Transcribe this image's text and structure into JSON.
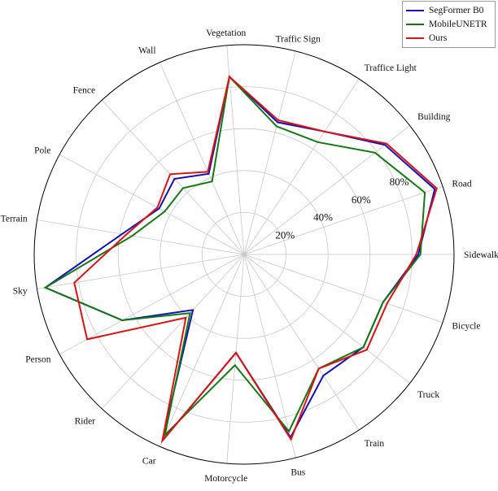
{
  "chart_data": {
    "type": "radar",
    "categories": [
      "Sidewalk",
      "Road",
      "Building",
      "Traffice Light",
      "Traffic Sign",
      "Vegetation",
      "Wall",
      "Fence",
      "Pole",
      "Terrain",
      "Sky",
      "Person",
      "Rider",
      "Car",
      "Motorcycle",
      "Bus",
      "Train",
      "Truck",
      "Bicycle"
    ],
    "rtick_labels": [
      "20%",
      "40%",
      "60%",
      "80%"
    ],
    "rlim": [
      0,
      100
    ],
    "grid": true,
    "legend": "top-right",
    "series": [
      {
        "name": "SegFormer B0",
        "color": "#1010c0",
        "values": [
          83,
          96,
          85,
          70,
          65,
          85,
          42,
          49,
          46,
          59,
          96,
          66,
          36,
          97,
          47,
          90,
          69,
          72,
          70
        ]
      },
      {
        "name": "MobileUNETR",
        "color": "#127a12",
        "values": [
          84,
          91,
          79,
          64,
          63,
          85,
          38,
          43,
          43,
          54,
          96,
          66,
          38,
          94,
          53,
          87,
          65,
          72,
          70
        ]
      },
      {
        "name": "Ours",
        "color": "#e01010",
        "values": [
          82,
          97,
          86,
          70,
          66,
          85,
          43,
          52,
          47,
          57,
          82,
          85,
          41,
          97,
          47,
          91,
          65,
          74,
          72
        ]
      }
    ]
  }
}
